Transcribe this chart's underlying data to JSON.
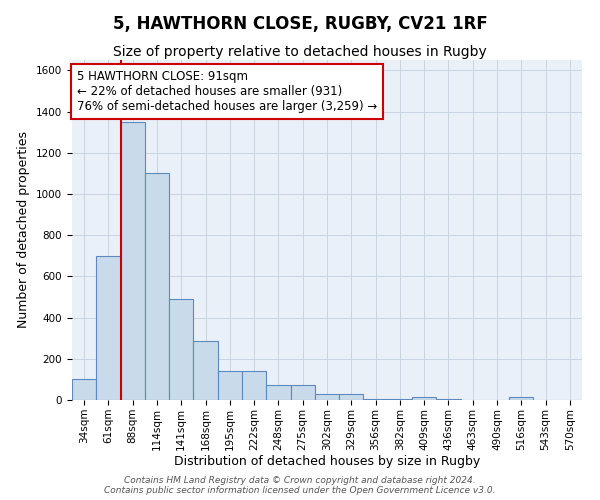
{
  "title": "5, HAWTHORN CLOSE, RUGBY, CV21 1RF",
  "subtitle": "Size of property relative to detached houses in Rugby",
  "xlabel": "Distribution of detached houses by size in Rugby",
  "ylabel": "Number of detached properties",
  "categories": [
    "34sqm",
    "61sqm",
    "88sqm",
    "114sqm",
    "141sqm",
    "168sqm",
    "195sqm",
    "222sqm",
    "248sqm",
    "275sqm",
    "302sqm",
    "329sqm",
    "356sqm",
    "382sqm",
    "409sqm",
    "436sqm",
    "463sqm",
    "490sqm",
    "516sqm",
    "543sqm",
    "570sqm"
  ],
  "values": [
    100,
    700,
    1350,
    1100,
    490,
    285,
    140,
    140,
    75,
    75,
    30,
    30,
    5,
    5,
    15,
    5,
    0,
    0,
    15,
    0,
    0
  ],
  "bar_color": "#c9daea",
  "bar_edge_color": "#5a8abf",
  "bar_edge_width": 0.8,
  "red_line_x": 1.5,
  "annotation_text": "5 HAWTHORN CLOSE: 91sqm\n← 22% of detached houses are smaller (931)\n76% of semi-detached houses are larger (3,259) →",
  "annotation_box_color": "#ffffff",
  "annotation_border_color": "#cc0000",
  "ylim": [
    0,
    1650
  ],
  "yticks": [
    0,
    200,
    400,
    600,
    800,
    1000,
    1200,
    1400,
    1600
  ],
  "grid_color": "#c8d4e4",
  "background_color": "#eaf0f8",
  "footer_text": "Contains HM Land Registry data © Crown copyright and database right 2024.\nContains public sector information licensed under the Open Government Licence v3.0.",
  "title_fontsize": 12,
  "subtitle_fontsize": 10,
  "xlabel_fontsize": 9,
  "ylabel_fontsize": 9,
  "tick_fontsize": 7.5,
  "annotation_fontsize": 8.5,
  "footer_fontsize": 6.5
}
